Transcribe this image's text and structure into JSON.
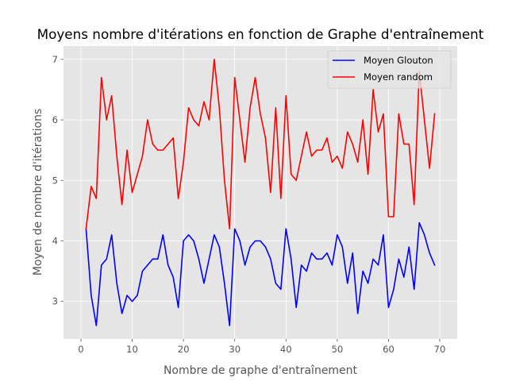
{
  "chart_data": {
    "type": "line",
    "title": "Moyens nombre d'itérations en fonction de Graphe d'entraînement",
    "xlabel": "Nombre de graphe d'entraînement",
    "ylabel": "Moyen de nombre d'itérations",
    "xlim": [
      -3.4,
      73.4
    ],
    "ylim": [
      2.38,
      7.22
    ],
    "xticks": [
      0,
      10,
      20,
      30,
      40,
      50,
      60,
      70
    ],
    "yticks": [
      3,
      4,
      5,
      6,
      7
    ],
    "grid": true,
    "legend_position": "top-right",
    "x": [
      1,
      2,
      3,
      4,
      5,
      6,
      7,
      8,
      9,
      10,
      11,
      12,
      13,
      14,
      15,
      16,
      17,
      18,
      19,
      20,
      21,
      22,
      23,
      24,
      25,
      26,
      27,
      28,
      29,
      30,
      31,
      32,
      33,
      34,
      35,
      36,
      37,
      38,
      39,
      40,
      41,
      42,
      43,
      44,
      45,
      46,
      47,
      48,
      49,
      50,
      51,
      52,
      53,
      54,
      55,
      56,
      57,
      58,
      59,
      60,
      61,
      62,
      63,
      64,
      65,
      66,
      67,
      68,
      69
    ],
    "series": [
      {
        "name": "Moyen Glouton",
        "color": "#0000ff",
        "values": [
          4.2,
          3.1,
          2.6,
          3.6,
          3.7,
          4.1,
          3.3,
          2.8,
          3.1,
          3.0,
          3.1,
          3.5,
          3.6,
          3.7,
          3.7,
          4.1,
          3.6,
          3.4,
          2.9,
          4.0,
          4.1,
          4.0,
          3.7,
          3.3,
          3.7,
          4.1,
          3.9,
          3.3,
          2.6,
          4.2,
          4.0,
          3.6,
          3.9,
          4.0,
          4.0,
          3.9,
          3.7,
          3.3,
          3.2,
          4.2,
          3.7,
          2.9,
          3.6,
          3.5,
          3.8,
          3.7,
          3.7,
          3.8,
          3.6,
          4.1,
          3.9,
          3.3,
          3.8,
          2.8,
          3.5,
          3.3,
          3.7,
          3.6,
          4.1,
          2.9,
          3.2,
          3.7,
          3.4,
          3.9,
          3.2,
          4.3,
          4.1,
          3.8,
          3.6
        ]
      },
      {
        "name": "Moyen random",
        "color": "#ff0000",
        "values": [
          4.2,
          4.9,
          4.7,
          6.7,
          6.0,
          6.4,
          5.4,
          4.6,
          5.5,
          4.8,
          5.1,
          5.4,
          6.0,
          5.6,
          5.5,
          5.5,
          5.6,
          5.7,
          4.7,
          5.3,
          6.2,
          6.0,
          5.9,
          6.3,
          6.0,
          7.0,
          6.2,
          5.0,
          4.2,
          6.7,
          6.0,
          5.3,
          6.2,
          6.7,
          6.1,
          5.7,
          4.8,
          6.2,
          4.7,
          6.4,
          5.1,
          5.0,
          5.4,
          5.8,
          5.4,
          5.5,
          5.5,
          5.7,
          5.3,
          5.4,
          5.2,
          5.8,
          5.6,
          5.3,
          6.0,
          5.1,
          6.5,
          5.8,
          6.1,
          4.4,
          4.4,
          6.1,
          5.6,
          5.6,
          4.6,
          6.8,
          6.0,
          5.2,
          6.1
        ]
      }
    ]
  }
}
